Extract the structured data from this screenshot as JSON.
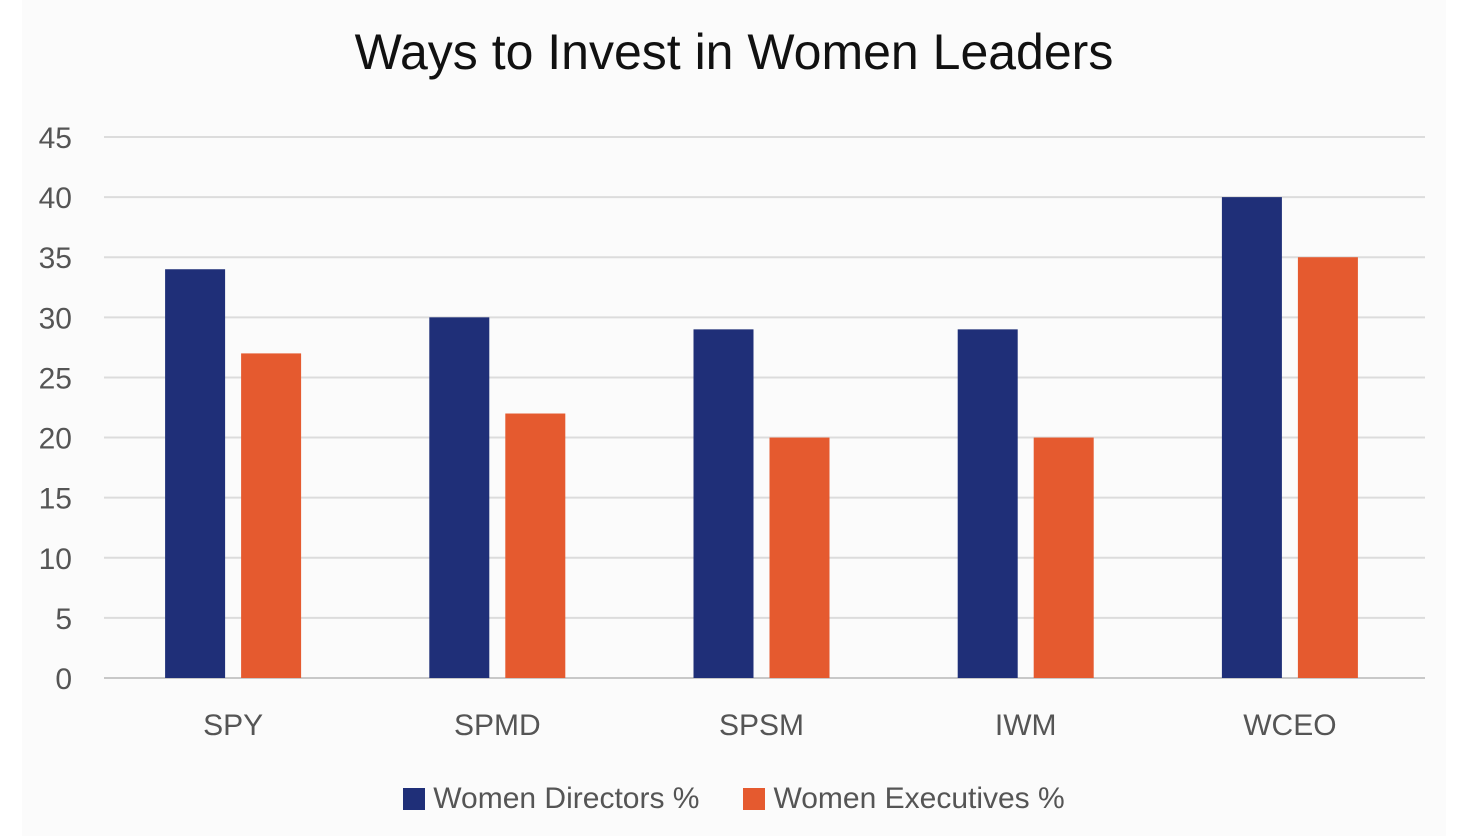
{
  "chart_data": {
    "type": "bar",
    "title": "Ways to Invest in Women Leaders",
    "categories": [
      "SPY",
      "SPMD",
      "SPSM",
      "IWM",
      "WCEO"
    ],
    "series": [
      {
        "name": "Women Directors %",
        "values": [
          34,
          30,
          29,
          29,
          40
        ],
        "color": "#1f2f78"
      },
      {
        "name": "Women Executives %",
        "values": [
          27,
          22,
          20,
          20,
          35
        ],
        "color": "#e55a2f"
      }
    ],
    "ylim": [
      0,
      45
    ],
    "yticks": [
      0,
      5,
      10,
      15,
      20,
      25,
      30,
      35,
      40,
      45
    ],
    "grid": true,
    "legend_position": "bottom"
  }
}
